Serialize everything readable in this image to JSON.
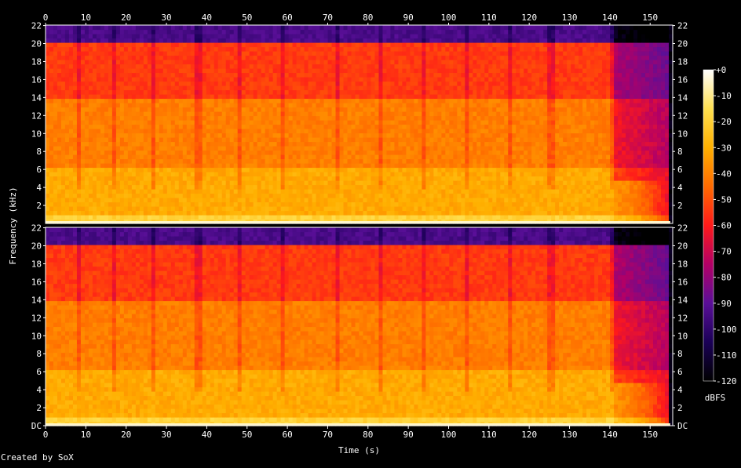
{
  "credit": "Created by SoX",
  "chart_data": {
    "type": "heatmap",
    "title": "",
    "xlabel": "Time (s)",
    "ylabel": "Frequency (kHz)",
    "xlim": [
      0,
      155.6
    ],
    "x_ticks": [
      "0",
      "10",
      "20",
      "30",
      "40",
      "50",
      "60",
      "70",
      "80",
      "90",
      "100",
      "110",
      "120",
      "130",
      "140",
      "150"
    ],
    "y_ticks_top_channel": [
      "2",
      "4",
      "6",
      "8",
      "10",
      "12",
      "14",
      "16",
      "18",
      "20",
      "22"
    ],
    "y_ticks_bottom_channel": [
      "DC",
      "2",
      "4",
      "6",
      "8",
      "10",
      "12",
      "14",
      "16",
      "18",
      "20",
      "22"
    ],
    "channels": [
      "Channel 1",
      "Channel 2"
    ],
    "ylim_khz": [
      0,
      22.05
    ],
    "colorbar": {
      "label": "dBFS",
      "ticks": [
        "+0",
        "-10",
        "-20",
        "-30",
        "-40",
        "-50",
        "-60",
        "-70",
        "-80",
        "-90",
        "-100",
        "-110",
        "-120"
      ],
      "range_db": [
        -120,
        0
      ]
    },
    "colormap": [
      "#000000",
      "#1a0056",
      "#5a0f98",
      "#b20066",
      "#ff1a1a",
      "#ff6a00",
      "#ffb000",
      "#ffe050",
      "#ffffff"
    ],
    "lowpass_cutoff_khz": 20,
    "section_boundaries_s": [
      8,
      17,
      27,
      38,
      48,
      58.5,
      72.5,
      83.5,
      94,
      104.5,
      115,
      125.5,
      140.5
    ],
    "fade_start_s": 141,
    "end_s": 155
  }
}
